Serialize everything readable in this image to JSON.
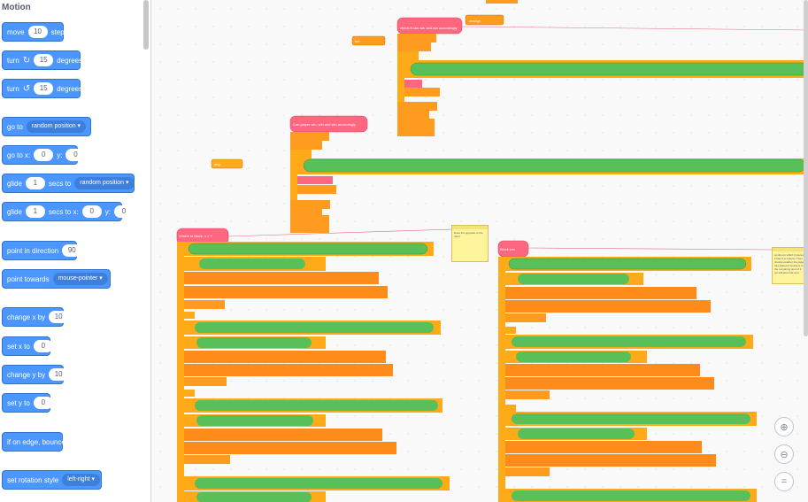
{
  "palette": {
    "category": "Motion",
    "move": {
      "label_a": "move",
      "value": "10",
      "label_b": "steps"
    },
    "turn_right": {
      "label_a": "turn",
      "value": "15",
      "label_b": "degrees"
    },
    "turn_left": {
      "label_a": "turn",
      "value": "15",
      "label_b": "degrees"
    },
    "go_to": {
      "label": "go to",
      "option": "random position"
    },
    "go_to_xy": {
      "label_a": "go to x:",
      "x": "0",
      "label_b": "y:",
      "y": "0"
    },
    "glide_to": {
      "label_a": "glide",
      "secs": "1",
      "label_b": "secs to",
      "option": "random position"
    },
    "glide_xy": {
      "label_a": "glide",
      "secs": "1",
      "label_b": "secs to x:",
      "x": "0",
      "label_c": "y:",
      "y": "0"
    },
    "point_direction": {
      "label": "point in direction",
      "value": "90"
    },
    "point_towards": {
      "label": "point towards",
      "option": "mouse-pointer"
    },
    "change_x": {
      "label": "change x by",
      "value": "10"
    },
    "set_x": {
      "label": "set x to",
      "value": "0"
    },
    "change_y": {
      "label": "change y by",
      "value": "10"
    },
    "set_y": {
      "label": "set y to",
      "value": "0"
    },
    "bounce": {
      "label": "if on edge, bounce"
    },
    "rotation_style": {
      "label": "set rotation style",
      "option": "left-right"
    }
  },
  "workspace": {
    "script1": {
      "define": "check if can win and win accordingly",
      "change": "change",
      "by": "by"
    },
    "script2": {
      "define": "Can player win, win and win accordingly"
    },
    "script3": {
      "define": "Where to block, x = ?"
    },
    "script4": {
      "define": "Block win"
    },
    "var_stub": "set",
    "stop_stub": "stop"
  },
  "notes": {
    "note1": "Does the opposite to the other",
    "note2": "works out which 3 pieces it has in a column. Then checks weather the player has placed 2 counters in the remaining spot of it out will also that spot"
  },
  "zoom": {
    "zoom_in": "zoom-in-icon",
    "zoom_out": "zoom-out-icon",
    "reset": "zoom-reset-icon"
  }
}
